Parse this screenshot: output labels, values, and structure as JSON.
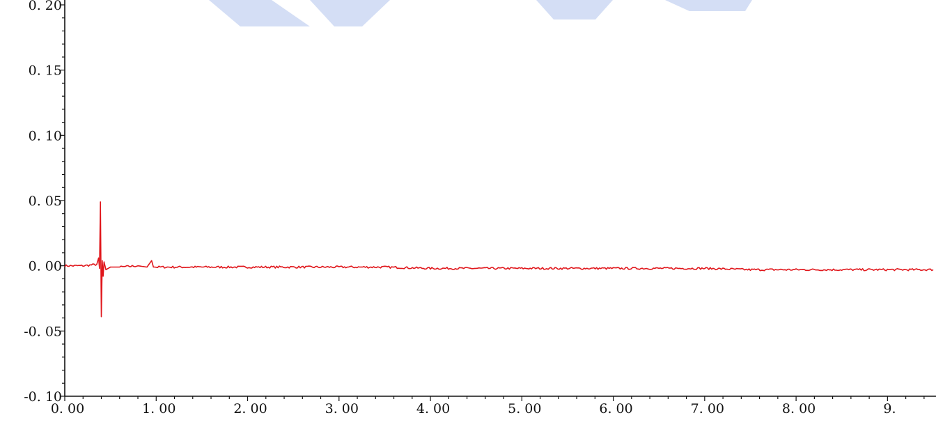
{
  "chart_data": {
    "type": "line",
    "title": "",
    "xlabel": "",
    "ylabel": "",
    "xlim": [
      0,
      9.5
    ],
    "ylim": [
      -0.1,
      0.2
    ],
    "x_ticks": [
      0,
      1,
      2,
      3,
      4,
      5,
      6,
      7,
      8,
      9
    ],
    "x_tick_labels": [
      "0. 00",
      "1. 00",
      "2. 00",
      "3. 00",
      "4. 00",
      "5. 00",
      "6. 00",
      "7. 00",
      "8. 00",
      "9."
    ],
    "y_ticks": [
      -0.1,
      -0.05,
      0,
      0.05,
      0.1,
      0.15,
      0.2
    ],
    "y_tick_labels": [
      "-0. 10",
      "-0. 05",
      "0. 00",
      "0. 05",
      "0. 10",
      "0. 15",
      "0. 20"
    ],
    "grid": false,
    "line_color": "#e0161b",
    "series": [
      {
        "x": [
          0,
          0.2,
          0.35,
          0.37,
          0.38,
          0.39,
          0.4,
          0.41,
          0.42,
          0.43,
          0.45,
          0.5,
          0.6,
          0.8,
          0.9,
          0.95,
          0.97,
          1.0,
          1.5,
          2.0,
          2.5,
          3.0,
          3.5,
          4.0,
          4.5,
          5.0,
          5.5,
          6.0,
          6.5,
          7.0,
          7.5,
          8.0,
          8.5,
          9.0,
          9.5
        ],
        "y": [
          0.0,
          0.0,
          0.001,
          0.006,
          -0.002,
          0.049,
          -0.039,
          0.004,
          -0.008,
          0.003,
          -0.003,
          -0.001,
          -0.001,
          0.0,
          -0.001,
          0.004,
          -0.001,
          -0.001,
          -0.001,
          -0.001,
          -0.001,
          -0.001,
          -0.001,
          -0.002,
          -0.002,
          -0.002,
          -0.002,
          -0.002,
          -0.002,
          -0.002,
          -0.003,
          -0.003,
          -0.003,
          -0.003,
          -0.003
        ]
      }
    ]
  }
}
